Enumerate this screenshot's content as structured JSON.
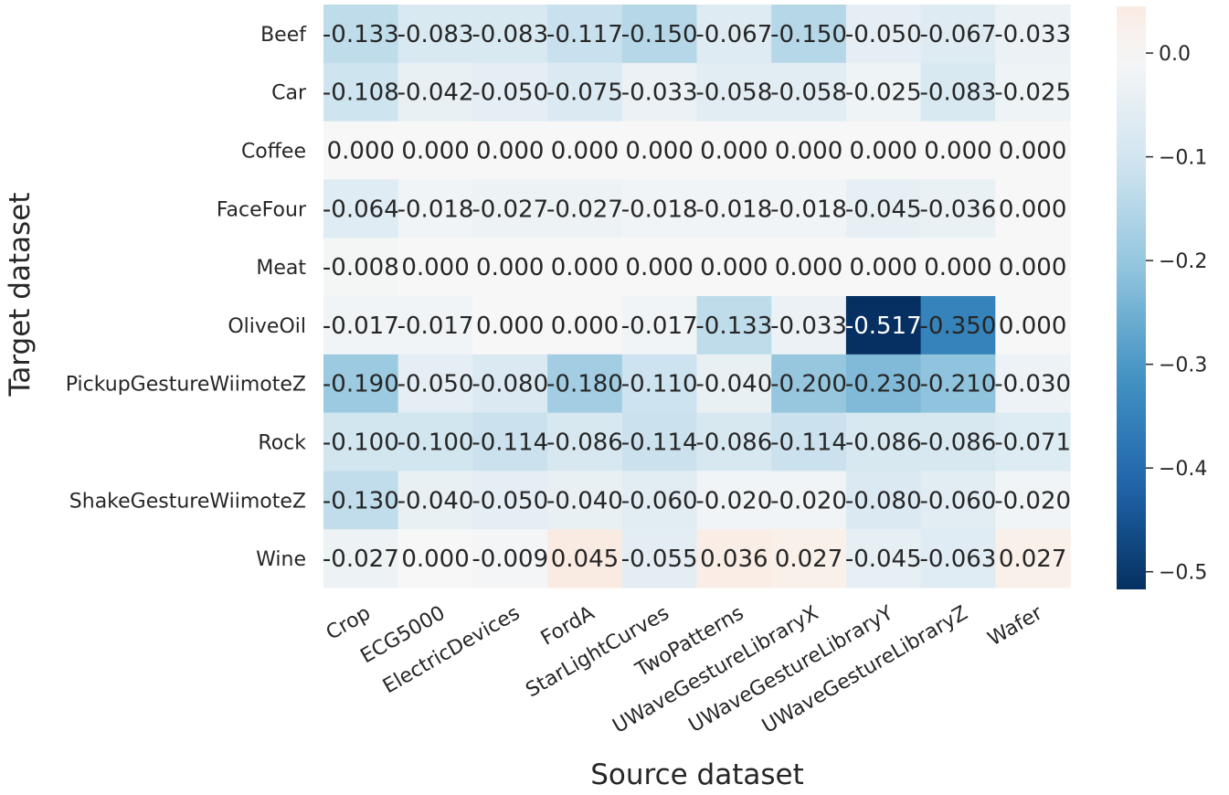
{
  "chart_data": {
    "type": "heatmap",
    "title": "",
    "xlabel": "Source dataset",
    "ylabel": "Target dataset",
    "x_categories": [
      "Crop",
      "ECG5000",
      "ElectricDevices",
      "FordA",
      "StarLightCurves",
      "TwoPatterns",
      "UWaveGestureLibraryX",
      "UWaveGestureLibraryY",
      "UWaveGestureLibraryZ",
      "Wafer"
    ],
    "y_categories": [
      "Beef",
      "Car",
      "Coffee",
      "FaceFour",
      "Meat",
      "OliveOil",
      "PickupGestureWiimoteZ",
      "Rock",
      "ShakeGestureWiimoteZ",
      "Wine"
    ],
    "values": [
      [
        -0.133,
        -0.083,
        -0.083,
        -0.117,
        -0.15,
        -0.067,
        -0.15,
        -0.05,
        -0.067,
        -0.033
      ],
      [
        -0.108,
        -0.042,
        -0.05,
        -0.075,
        -0.033,
        -0.058,
        -0.058,
        -0.025,
        -0.083,
        -0.025
      ],
      [
        0.0,
        0.0,
        0.0,
        0.0,
        0.0,
        0.0,
        0.0,
        0.0,
        0.0,
        0.0
      ],
      [
        -0.064,
        -0.018,
        -0.027,
        -0.027,
        -0.018,
        -0.018,
        -0.018,
        -0.045,
        -0.036,
        0.0
      ],
      [
        -0.008,
        0.0,
        0.0,
        0.0,
        0.0,
        0.0,
        0.0,
        0.0,
        0.0,
        0.0
      ],
      [
        -0.017,
        -0.017,
        0.0,
        0.0,
        -0.017,
        -0.133,
        -0.033,
        -0.517,
        -0.35,
        0.0
      ],
      [
        -0.19,
        -0.05,
        -0.08,
        -0.18,
        -0.11,
        -0.04,
        -0.2,
        -0.23,
        -0.21,
        -0.03
      ],
      [
        -0.1,
        -0.1,
        -0.114,
        -0.086,
        -0.114,
        -0.086,
        -0.114,
        -0.086,
        -0.086,
        -0.071
      ],
      [
        -0.13,
        -0.04,
        -0.05,
        -0.04,
        -0.06,
        -0.02,
        -0.02,
        -0.08,
        -0.06,
        -0.02
      ],
      [
        -0.027,
        0.0,
        -0.009,
        0.045,
        -0.055,
        0.036,
        0.027,
        -0.045,
        -0.063,
        0.027
      ]
    ],
    "labels": [
      [
        "-0.133",
        "-0.083",
        "-0.083",
        "-0.117",
        "-0.150",
        "-0.067",
        "-0.150",
        "-0.050",
        "-0.067",
        "-0.033"
      ],
      [
        "-0.108",
        "-0.042",
        "-0.050",
        "-0.075",
        "-0.033",
        "-0.058",
        "-0.058",
        "-0.025",
        "-0.083",
        "-0.025"
      ],
      [
        "0.000",
        "0.000",
        "0.000",
        "0.000",
        "0.000",
        "0.000",
        "0.000",
        "0.000",
        "0.000",
        "0.000"
      ],
      [
        "-0.064",
        "-0.018",
        "-0.027",
        "-0.027",
        "-0.018",
        "-0.018",
        "-0.018",
        "-0.045",
        "-0.036",
        "0.000"
      ],
      [
        "-0.008",
        "0.000",
        "0.000",
        "0.000",
        "0.000",
        "0.000",
        "0.000",
        "0.000",
        "0.000",
        "0.000"
      ],
      [
        "-0.017",
        "-0.017",
        "0.000",
        "0.000",
        "-0.017",
        "-0.133",
        "-0.033",
        "-0.517",
        "-0.350",
        "0.000"
      ],
      [
        "-0.190",
        "-0.050",
        "-0.080",
        "-0.180",
        "-0.110",
        "-0.040",
        "-0.200",
        "-0.230",
        "-0.210",
        "-0.030"
      ],
      [
        "-0.100",
        "-0.100",
        "-0.114",
        "-0.086",
        "-0.114",
        "-0.086",
        "-0.114",
        "-0.086",
        "-0.086",
        "-0.071"
      ],
      [
        "-0.130",
        "-0.040",
        "-0.050",
        "-0.040",
        "-0.060",
        "-0.020",
        "-0.020",
        "-0.080",
        "-0.060",
        "-0.020"
      ],
      [
        "-0.027",
        "0.000",
        "-0.009",
        "0.045",
        "-0.055",
        "0.036",
        "0.027",
        "-0.045",
        "-0.063",
        "0.027"
      ]
    ],
    "colormap": "RdBu_r",
    "vmin": -0.517,
    "vmax": 0.045,
    "colorbar": {
      "ticks": [
        0.0,
        -0.1,
        -0.2,
        -0.3,
        -0.4,
        -0.5
      ],
      "tick_labels": [
        "0.0",
        "−0.1",
        "−0.2",
        "−0.3",
        "−0.4",
        "−0.5"
      ]
    },
    "grid": false
  }
}
